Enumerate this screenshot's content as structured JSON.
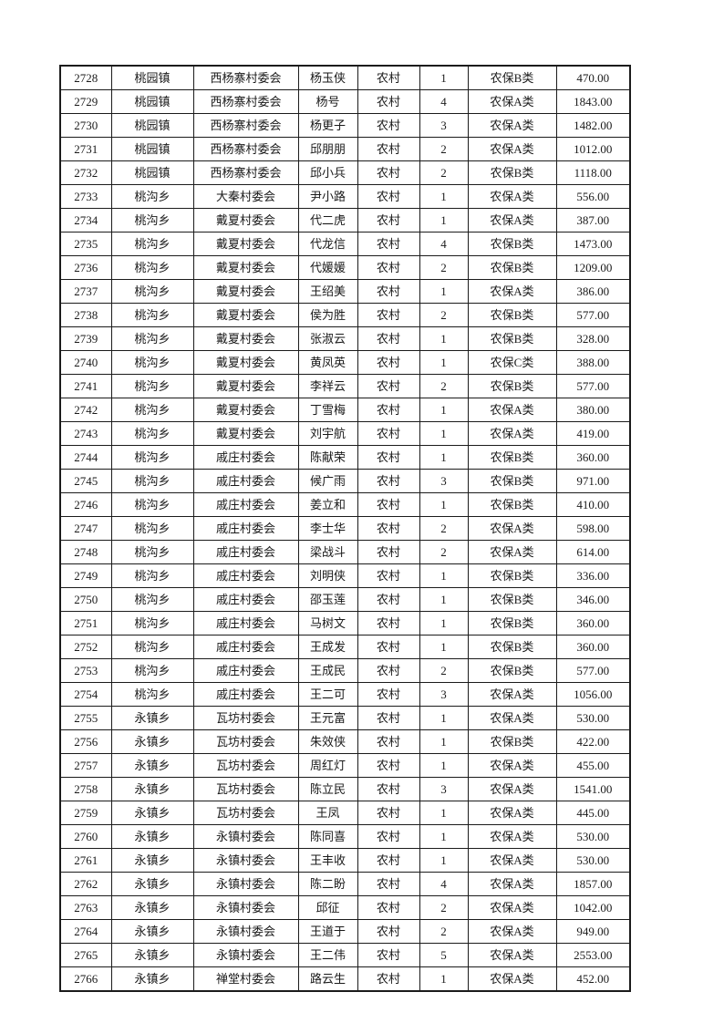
{
  "colors": {
    "page_background": "#ffffff",
    "table_border": "#1b1b1b",
    "text": "#1a1a1a"
  },
  "table": {
    "rows": [
      [
        "2728",
        "桃园镇",
        "西杨寨村委会",
        "杨玉侠",
        "农村",
        "1",
        "农保B类",
        "470.00"
      ],
      [
        "2729",
        "桃园镇",
        "西杨寨村委会",
        "杨号",
        "农村",
        "4",
        "农保A类",
        "1843.00"
      ],
      [
        "2730",
        "桃园镇",
        "西杨寨村委会",
        "杨更子",
        "农村",
        "3",
        "农保A类",
        "1482.00"
      ],
      [
        "2731",
        "桃园镇",
        "西杨寨村委会",
        "邱朋朋",
        "农村",
        "2",
        "农保A类",
        "1012.00"
      ],
      [
        "2732",
        "桃园镇",
        "西杨寨村委会",
        "邱小兵",
        "农村",
        "2",
        "农保B类",
        "1118.00"
      ],
      [
        "2733",
        "桃沟乡",
        "大秦村委会",
        "尹小路",
        "农村",
        "1",
        "农保A类",
        "556.00"
      ],
      [
        "2734",
        "桃沟乡",
        "戴夏村委会",
        "代二虎",
        "农村",
        "1",
        "农保A类",
        "387.00"
      ],
      [
        "2735",
        "桃沟乡",
        "戴夏村委会",
        "代龙信",
        "农村",
        "4",
        "农保B类",
        "1473.00"
      ],
      [
        "2736",
        "桃沟乡",
        "戴夏村委会",
        "代媛媛",
        "农村",
        "2",
        "农保B类",
        "1209.00"
      ],
      [
        "2737",
        "桃沟乡",
        "戴夏村委会",
        "王绍美",
        "农村",
        "1",
        "农保A类",
        "386.00"
      ],
      [
        "2738",
        "桃沟乡",
        "戴夏村委会",
        "侯为胜",
        "农村",
        "2",
        "农保B类",
        "577.00"
      ],
      [
        "2739",
        "桃沟乡",
        "戴夏村委会",
        "张淑云",
        "农村",
        "1",
        "农保B类",
        "328.00"
      ],
      [
        "2740",
        "桃沟乡",
        "戴夏村委会",
        "黄凤英",
        "农村",
        "1",
        "农保C类",
        "388.00"
      ],
      [
        "2741",
        "桃沟乡",
        "戴夏村委会",
        "李祥云",
        "农村",
        "2",
        "农保B类",
        "577.00"
      ],
      [
        "2742",
        "桃沟乡",
        "戴夏村委会",
        "丁雪梅",
        "农村",
        "1",
        "农保A类",
        "380.00"
      ],
      [
        "2743",
        "桃沟乡",
        "戴夏村委会",
        "刘宇航",
        "农村",
        "1",
        "农保A类",
        "419.00"
      ],
      [
        "2744",
        "桃沟乡",
        "戚庄村委会",
        "陈献荣",
        "农村",
        "1",
        "农保B类",
        "360.00"
      ],
      [
        "2745",
        "桃沟乡",
        "戚庄村委会",
        "候广雨",
        "农村",
        "3",
        "农保B类",
        "971.00"
      ],
      [
        "2746",
        "桃沟乡",
        "戚庄村委会",
        "姜立和",
        "农村",
        "1",
        "农保B类",
        "410.00"
      ],
      [
        "2747",
        "桃沟乡",
        "戚庄村委会",
        "李士华",
        "农村",
        "2",
        "农保A类",
        "598.00"
      ],
      [
        "2748",
        "桃沟乡",
        "戚庄村委会",
        "梁战斗",
        "农村",
        "2",
        "农保A类",
        "614.00"
      ],
      [
        "2749",
        "桃沟乡",
        "戚庄村委会",
        "刘明侠",
        "农村",
        "1",
        "农保B类",
        "336.00"
      ],
      [
        "2750",
        "桃沟乡",
        "戚庄村委会",
        "邵玉莲",
        "农村",
        "1",
        "农保B类",
        "346.00"
      ],
      [
        "2751",
        "桃沟乡",
        "戚庄村委会",
        "马树文",
        "农村",
        "1",
        "农保B类",
        "360.00"
      ],
      [
        "2752",
        "桃沟乡",
        "戚庄村委会",
        "王成发",
        "农村",
        "1",
        "农保B类",
        "360.00"
      ],
      [
        "2753",
        "桃沟乡",
        "戚庄村委会",
        "王成民",
        "农村",
        "2",
        "农保B类",
        "577.00"
      ],
      [
        "2754",
        "桃沟乡",
        "戚庄村委会",
        "王二可",
        "农村",
        "3",
        "农保A类",
        "1056.00"
      ],
      [
        "2755",
        "永镇乡",
        "瓦坊村委会",
        "王元富",
        "农村",
        "1",
        "农保A类",
        "530.00"
      ],
      [
        "2756",
        "永镇乡",
        "瓦坊村委会",
        "朱效侠",
        "农村",
        "1",
        "农保B类",
        "422.00"
      ],
      [
        "2757",
        "永镇乡",
        "瓦坊村委会",
        "周红灯",
        "农村",
        "1",
        "农保A类",
        "455.00"
      ],
      [
        "2758",
        "永镇乡",
        "瓦坊村委会",
        "陈立民",
        "农村",
        "3",
        "农保A类",
        "1541.00"
      ],
      [
        "2759",
        "永镇乡",
        "瓦坊村委会",
        "王凤",
        "农村",
        "1",
        "农保A类",
        "445.00"
      ],
      [
        "2760",
        "永镇乡",
        "永镇村委会",
        "陈同喜",
        "农村",
        "1",
        "农保A类",
        "530.00"
      ],
      [
        "2761",
        "永镇乡",
        "永镇村委会",
        "王丰收",
        "农村",
        "1",
        "农保A类",
        "530.00"
      ],
      [
        "2762",
        "永镇乡",
        "永镇村委会",
        "陈二盼",
        "农村",
        "4",
        "农保A类",
        "1857.00"
      ],
      [
        "2763",
        "永镇乡",
        "永镇村委会",
        "邱征",
        "农村",
        "2",
        "农保A类",
        "1042.00"
      ],
      [
        "2764",
        "永镇乡",
        "永镇村委会",
        "王道于",
        "农村",
        "2",
        "农保A类",
        "949.00"
      ],
      [
        "2765",
        "永镇乡",
        "永镇村委会",
        "王二伟",
        "农村",
        "5",
        "农保A类",
        "2553.00"
      ],
      [
        "2766",
        "永镇乡",
        "禅堂村委会",
        "路云生",
        "农村",
        "1",
        "农保A类",
        "452.00"
      ]
    ]
  }
}
